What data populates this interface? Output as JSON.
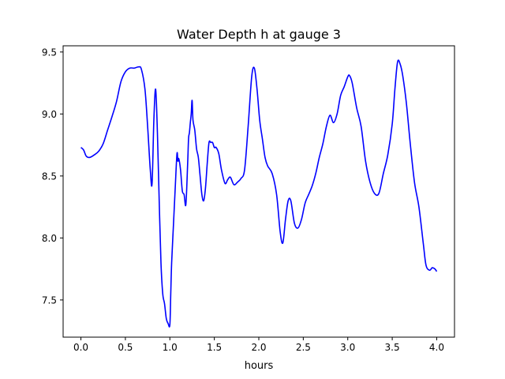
{
  "chart_data": {
    "type": "line",
    "title": "Water Depth h at gauge 3",
    "xlabel": "hours",
    "ylabel": "",
    "xlim": [
      -0.2,
      4.2
    ],
    "ylim": [
      7.2,
      9.55
    ],
    "x_ticks": [
      0.0,
      0.5,
      1.0,
      1.5,
      2.0,
      2.5,
      3.0,
      3.5,
      4.0
    ],
    "x_tick_labels": [
      "0.0",
      "0.5",
      "1.0",
      "1.5",
      "2.0",
      "2.5",
      "3.0",
      "3.5",
      "4.0"
    ],
    "y_ticks": [
      7.5,
      8.0,
      8.5,
      9.0,
      9.5
    ],
    "y_tick_labels": [
      "7.5",
      "8.0",
      "8.5",
      "9.0",
      "9.5"
    ],
    "grid": false,
    "series": [
      {
        "color": "#0000ff",
        "x": [
          0.0,
          0.03,
          0.06,
          0.1,
          0.15,
          0.2,
          0.25,
          0.3,
          0.35,
          0.4,
          0.45,
          0.5,
          0.55,
          0.6,
          0.65,
          0.68,
          0.72,
          0.75,
          0.78,
          0.8,
          0.82,
          0.84,
          0.86,
          0.88,
          0.9,
          0.92,
          0.94,
          0.96,
          0.98,
          1.0,
          1.01,
          1.02,
          1.04,
          1.06,
          1.08,
          1.09,
          1.1,
          1.12,
          1.14,
          1.16,
          1.18,
          1.2,
          1.21,
          1.22,
          1.23,
          1.24,
          1.25,
          1.26,
          1.28,
          1.3,
          1.32,
          1.34,
          1.36,
          1.38,
          1.4,
          1.42,
          1.44,
          1.46,
          1.48,
          1.5,
          1.52,
          1.55,
          1.58,
          1.62,
          1.65,
          1.68,
          1.72,
          1.76,
          1.8,
          1.84,
          1.88,
          1.92,
          1.95,
          1.98,
          2.01,
          2.04,
          2.07,
          2.1,
          2.15,
          2.2,
          2.24,
          2.27,
          2.3,
          2.33,
          2.36,
          2.4,
          2.44,
          2.48,
          2.52,
          2.56,
          2.6,
          2.64,
          2.68,
          2.72,
          2.76,
          2.8,
          2.84,
          2.88,
          2.92,
          2.96,
          3.0,
          3.02,
          3.05,
          3.1,
          3.15,
          3.2,
          3.25,
          3.3,
          3.35,
          3.4,
          3.45,
          3.5,
          3.53,
          3.56,
          3.59,
          3.62,
          3.66,
          3.7,
          3.75,
          3.8,
          3.85,
          3.88,
          3.92,
          3.95,
          3.98,
          4.0
        ],
        "y": [
          8.73,
          8.71,
          8.66,
          8.65,
          8.67,
          8.7,
          8.76,
          8.87,
          8.98,
          9.1,
          9.26,
          9.34,
          9.37,
          9.37,
          9.38,
          9.36,
          9.2,
          8.9,
          8.55,
          8.44,
          8.95,
          9.2,
          8.85,
          8.3,
          7.8,
          7.55,
          7.47,
          7.35,
          7.31,
          7.3,
          7.55,
          7.8,
          8.1,
          8.4,
          8.68,
          8.62,
          8.64,
          8.55,
          8.38,
          8.35,
          8.27,
          8.6,
          8.8,
          8.85,
          8.93,
          9.0,
          9.11,
          8.95,
          8.87,
          8.72,
          8.65,
          8.5,
          8.35,
          8.3,
          8.4,
          8.6,
          8.77,
          8.77,
          8.77,
          8.73,
          8.73,
          8.68,
          8.55,
          8.44,
          8.47,
          8.49,
          8.43,
          8.45,
          8.48,
          8.55,
          8.9,
          9.3,
          9.37,
          9.2,
          8.95,
          8.8,
          8.65,
          8.58,
          8.52,
          8.35,
          8.05,
          7.96,
          8.15,
          8.3,
          8.3,
          8.12,
          8.08,
          8.15,
          8.28,
          8.35,
          8.42,
          8.52,
          8.65,
          8.76,
          8.9,
          8.99,
          8.93,
          9.0,
          9.15,
          9.22,
          9.3,
          9.31,
          9.25,
          9.05,
          8.9,
          8.62,
          8.45,
          8.36,
          8.36,
          8.52,
          8.67,
          8.92,
          9.2,
          9.42,
          9.4,
          9.3,
          9.08,
          8.78,
          8.45,
          8.25,
          7.95,
          7.78,
          7.74,
          7.76,
          7.75,
          7.73
        ]
      }
    ]
  }
}
